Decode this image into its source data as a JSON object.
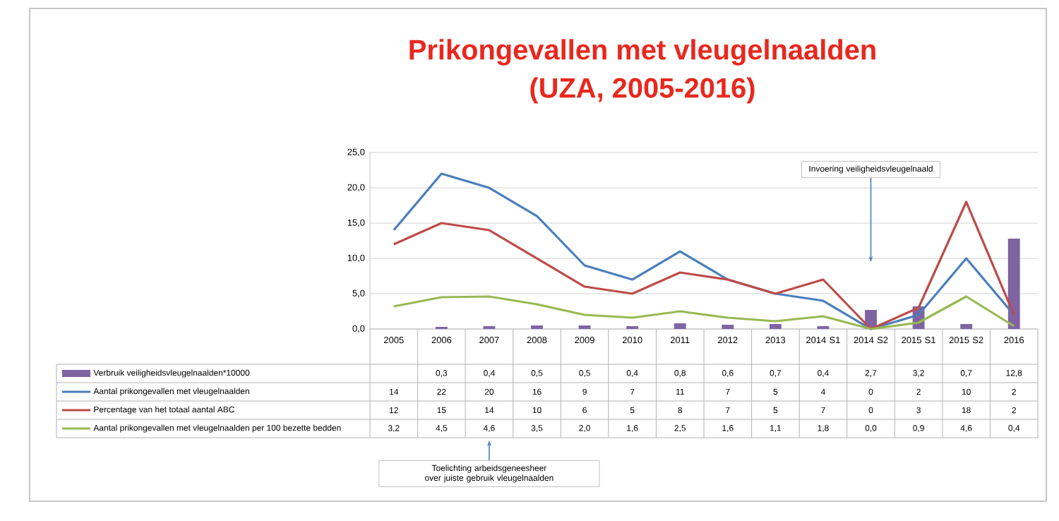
{
  "chart_data": {
    "type": "line",
    "title": "Prikongevallen met vleugelnaalden",
    "subtitle": "(UZA, 2005-2016)",
    "categories": [
      "2005",
      "2006",
      "2007",
      "2008",
      "2009",
      "2010",
      "2011",
      "2012",
      "2013",
      "2014 S1",
      "2014 S2",
      "2015 S1",
      "2015 S2",
      "2016"
    ],
    "ylim": [
      0,
      25
    ],
    "yticks": [
      {
        "value": 0,
        "label": "0,0"
      },
      {
        "value": 5,
        "label": "5,0"
      },
      {
        "value": 10,
        "label": "10,0"
      },
      {
        "value": 15,
        "label": "15,0"
      },
      {
        "value": 20,
        "label": "20,0"
      },
      {
        "value": 25,
        "label": "25,0"
      }
    ],
    "grid": "y",
    "legend": "bottom",
    "series": [
      {
        "name": "Verbruik veiligheidsvleugelnaalden*10000",
        "type": "bar",
        "color": "#8064a2",
        "values": [
          null,
          0.3,
          0.4,
          0.5,
          0.5,
          0.4,
          0.8,
          0.6,
          0.7,
          0.4,
          2.7,
          3.2,
          0.7,
          12.8
        ],
        "value_labels": [
          null,
          "0,3",
          "0,4",
          "0,5",
          "0,5",
          "0,4",
          "0,8",
          "0,6",
          "0,7",
          "0,4",
          "2,7",
          "3,2",
          "0,7",
          "12,8"
        ]
      },
      {
        "name": "Aantal prikongevallen met vleugelnaalden",
        "color": "#4a7ebb",
        "values": [
          14,
          22,
          20,
          16,
          9,
          7,
          11,
          7,
          5,
          4,
          0,
          2,
          10,
          2
        ],
        "value_labels": [
          "14",
          "22",
          "20",
          "16",
          "9",
          "7",
          "11",
          "7",
          "5",
          "4",
          "0",
          "2",
          "10",
          "2"
        ]
      },
      {
        "name": "Percentage van het totaal aantal ABC",
        "color": "#be4b48",
        "values": [
          12,
          15,
          14,
          10,
          6,
          5,
          8,
          7,
          5,
          7,
          0,
          3,
          18,
          2
        ],
        "value_labels": [
          "12",
          "15",
          "14",
          "10",
          "6",
          "5",
          "8",
          "7",
          "5",
          "7",
          "0",
          "3",
          "18",
          "2"
        ]
      },
      {
        "name": "Aantal prikongevallen met vleugelnaalden per 100 bezette bedden",
        "color": "#98b954",
        "values": [
          3.2,
          4.5,
          4.6,
          3.5,
          2.0,
          1.6,
          2.5,
          1.6,
          1.1,
          1.8,
          0.0,
          0.9,
          4.6,
          0.4
        ],
        "value_labels": [
          "3,2",
          "4,5",
          "4,6",
          "3,5",
          "2,0",
          "1,6",
          "2,5",
          "1,6",
          "1,1",
          "1,8",
          "0,0",
          "0,9",
          "4,6",
          "0,4"
        ]
      }
    ],
    "annotations": [
      "Invoering veiligheidsvleugelnaald",
      "Toelichting arbeidsgeneesheer over juiste gebruik vleugelnaalden"
    ]
  }
}
